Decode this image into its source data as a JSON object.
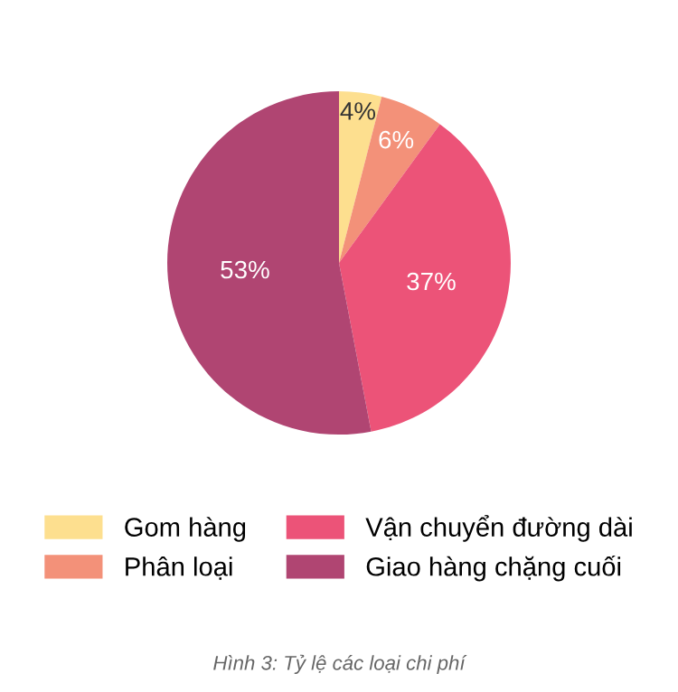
{
  "chart_data": {
    "type": "pie",
    "categories": [
      "Gom hàng",
      "Phân loại",
      "Vận chuyển đường dài",
      "Giao hàng chặng cuối"
    ],
    "values": [
      4,
      6,
      37,
      53
    ],
    "colors": [
      "#fddf8f",
      "#f39179",
      "#ec5378",
      "#b04572"
    ],
    "value_labels": [
      "4%",
      "6%",
      "37%",
      "53%"
    ],
    "legend": "bottom",
    "annotations": [
      "Hình 3: Tỷ lệ các loại chi phí"
    ]
  }
}
